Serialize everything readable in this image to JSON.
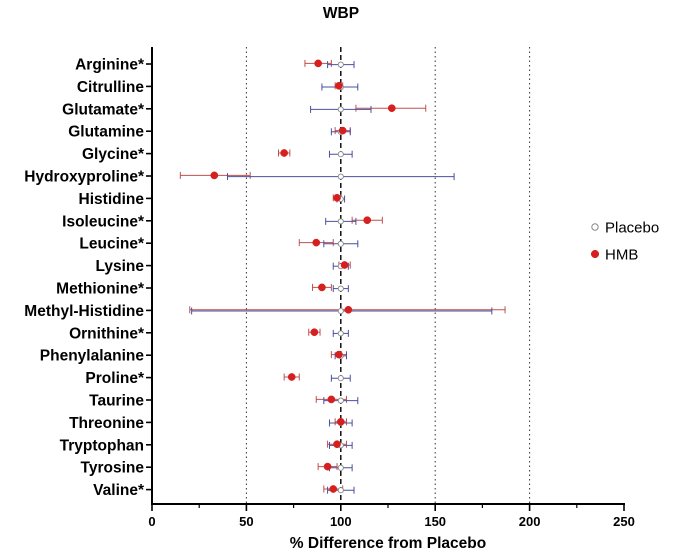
{
  "chart_data": {
    "type": "forest",
    "title": "WBP",
    "xlabel": "% Difference from Placebo",
    "xlim": [
      0,
      250
    ],
    "xticks": [
      0,
      50,
      100,
      150,
      200,
      250
    ],
    "reference_line": 100,
    "dotted_lines": [
      50,
      150,
      200
    ],
    "legend_position": "right",
    "colors": {
      "placebo_marker": "#888888",
      "placebo_bar": "#4a4fa0",
      "hmb": "#d62020",
      "hmb_bar": "#c0504d",
      "axis": "#000000"
    },
    "categories": [
      "Arginine*",
      "Citrulline",
      "Glutamate*",
      "Glutamine",
      "Glycine*",
      "Hydroxyproline*",
      "Histidine",
      "Isoleucine*",
      "Leucine*",
      "Lysine",
      "Methionine*",
      "Methyl-Histidine",
      "Ornithine*",
      "Phenylalanine",
      "Proline*",
      "Taurine",
      "Threonine",
      "Tryptophan",
      "Tyrosine",
      "Valine*"
    ],
    "series": [
      {
        "name": "Placebo",
        "marker": "open-circle",
        "values": [
          100,
          100,
          100,
          100,
          100,
          100,
          100,
          100,
          100,
          100,
          100,
          100,
          100,
          100,
          100,
          100,
          100,
          100,
          100,
          100
        ],
        "lower": [
          93,
          90,
          84,
          95,
          94,
          40,
          98,
          92,
          91,
          96,
          96,
          21,
          96,
          97,
          95,
          91,
          94,
          94,
          94,
          93
        ],
        "upper": [
          107,
          109,
          116,
          105,
          106,
          160,
          102,
          108,
          109,
          104,
          104,
          180,
          104,
          103,
          105,
          109,
          106,
          106,
          106,
          107
        ]
      },
      {
        "name": "HMB",
        "marker": "filled-circle",
        "values": [
          88,
          99,
          127,
          101,
          70,
          33,
          98,
          114,
          87,
          102,
          90,
          104,
          86,
          99,
          74,
          95,
          100,
          98,
          93,
          96
        ],
        "lower": [
          81,
          97,
          108,
          97,
          67,
          15,
          96,
          106,
          78,
          99,
          85,
          20,
          83,
          95,
          70,
          87,
          97,
          93,
          88,
          91
        ],
        "upper": [
          95,
          101,
          145,
          105,
          73,
          52,
          100,
          122,
          96,
          105,
          95,
          187,
          89,
          103,
          78,
          103,
          103,
          103,
          98,
          101
        ]
      }
    ]
  }
}
